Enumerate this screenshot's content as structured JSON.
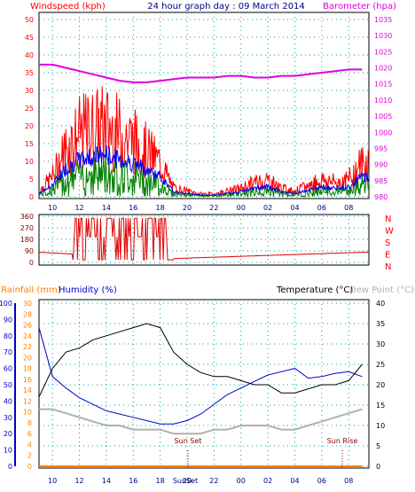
{
  "header": {
    "left_title": "Windspeed (kph)",
    "center_title": "24 hour graph day : 09 March 2014",
    "right_title": "Barometer (hpa)"
  },
  "lower_header": {
    "rainfall": "Rainfall (mm)",
    "humidity": "Humidity (%)",
    "temperature": "Temperature (°C)",
    "dew_point": "Dew Point (°C)"
  },
  "colors": {
    "windspeed": "#ff0000",
    "wind_avg": "#0000ff",
    "wind_green": "#008000",
    "barometer": "#e000e0",
    "title_blue": "#000080",
    "rainfall": "#ff8000",
    "humidity": "#0000cc",
    "temperature": "#000000",
    "dew_point": "#b0b0b0",
    "grid": "#00a0a0",
    "axis_label": "#800000"
  },
  "x_ticks": [
    "10",
    "12",
    "14",
    "16",
    "18",
    "20",
    "22",
    "00",
    "02",
    "04",
    "06",
    "08"
  ],
  "sunset_label": "Sun Set",
  "sunrise_label": "Sun Rise",
  "sunset_tick_label": "SunSet",
  "chart_data": [
    {
      "type": "line",
      "name": "wind-barometer",
      "x_hours": [
        9,
        10,
        11,
        12,
        13,
        14,
        15,
        16,
        17,
        18,
        19,
        20,
        21,
        22,
        23,
        24,
        25,
        26,
        27,
        28,
        29,
        30,
        31,
        32,
        33
      ],
      "series": [
        {
          "name": "Windspeed (kph)",
          "axis": "left",
          "values": [
            2,
            7,
            17,
            22,
            24,
            25,
            22,
            20,
            16,
            12,
            3,
            2,
            1,
            1,
            2,
            3,
            5,
            6,
            3,
            2,
            4,
            6,
            5,
            6,
            12
          ]
        },
        {
          "name": "Barometer (hpa)",
          "axis": "right",
          "values": [
            1021,
            1021,
            1020,
            1019,
            1018,
            1017,
            1016,
            1015.5,
            1015.5,
            1016,
            1016.5,
            1017,
            1017,
            1017,
            1017.5,
            1017.5,
            1017,
            1017,
            1017.5,
            1017.5,
            1018,
            1018.5,
            1019,
            1019.5,
            1019.5
          ]
        }
      ],
      "left_ticks": [
        "0",
        "5",
        "10",
        "15",
        "20",
        "25",
        "30",
        "35",
        "40",
        "45",
        "50"
      ],
      "right_ticks": [
        "980",
        "985",
        "990",
        "995",
        "1000",
        "1005",
        "1010",
        "1015",
        "1020",
        "1025",
        "1030",
        "1035"
      ],
      "ylim_left": [
        0,
        50
      ],
      "ylim_right": [
        980,
        1035
      ]
    },
    {
      "type": "line",
      "name": "wind-direction",
      "left_ticks": [
        "0",
        "90",
        "180",
        "270",
        "360"
      ],
      "right_labels": [
        "N",
        "W",
        "S",
        "E",
        "N"
      ],
      "ylim": [
        0,
        360
      ]
    },
    {
      "type": "line",
      "name": "temp-humidity",
      "x_hours": [
        9,
        10,
        11,
        12,
        13,
        14,
        15,
        16,
        17,
        18,
        19,
        20,
        21,
        22,
        23,
        24,
        25,
        26,
        27,
        28,
        29,
        30,
        31,
        32,
        33
      ],
      "series": [
        {
          "name": "Humidity (%)",
          "axis": "humidity",
          "values": [
            85,
            55,
            48,
            42,
            38,
            34,
            32,
            30,
            28,
            26,
            26,
            28,
            32,
            38,
            44,
            48,
            52,
            56,
            58,
            60,
            54,
            55,
            57,
            58,
            55
          ]
        },
        {
          "name": "Temperature (°C)",
          "axis": "right",
          "values": [
            17,
            24,
            28,
            29,
            31,
            32,
            33,
            34,
            35,
            34,
            28,
            25,
            23,
            22,
            22,
            21,
            20,
            20,
            18,
            18,
            19,
            20,
            20,
            21,
            25
          ]
        },
        {
          "name": "Dew Point (°C)",
          "axis": "right",
          "values": [
            14,
            14,
            13,
            12,
            11,
            10,
            10,
            9,
            9,
            9,
            8,
            8,
            8,
            9,
            9,
            10,
            10,
            10,
            9,
            9,
            10,
            11,
            12,
            13,
            14
          ]
        },
        {
          "name": "Rainfall (mm)",
          "axis": "rain",
          "values": [
            0,
            0,
            0,
            0,
            0,
            0,
            0,
            0,
            0,
            0,
            0,
            0,
            0,
            0,
            0,
            0,
            0,
            0,
            0,
            0,
            0,
            0,
            0,
            0,
            0
          ]
        }
      ],
      "rain_ticks": [
        "0",
        "2",
        "4",
        "6",
        "8",
        "10",
        "12",
        "14",
        "16",
        "18",
        "20",
        "22",
        "24",
        "26",
        "28",
        "30"
      ],
      "humidity_ticks": [
        "0",
        "10",
        "20",
        "30",
        "40",
        "50",
        "60",
        "70",
        "80",
        "90",
        "100"
      ],
      "temp_ticks": [
        "0",
        "5",
        "10",
        "15",
        "20",
        "25",
        "30",
        "35",
        "40"
      ]
    }
  ]
}
